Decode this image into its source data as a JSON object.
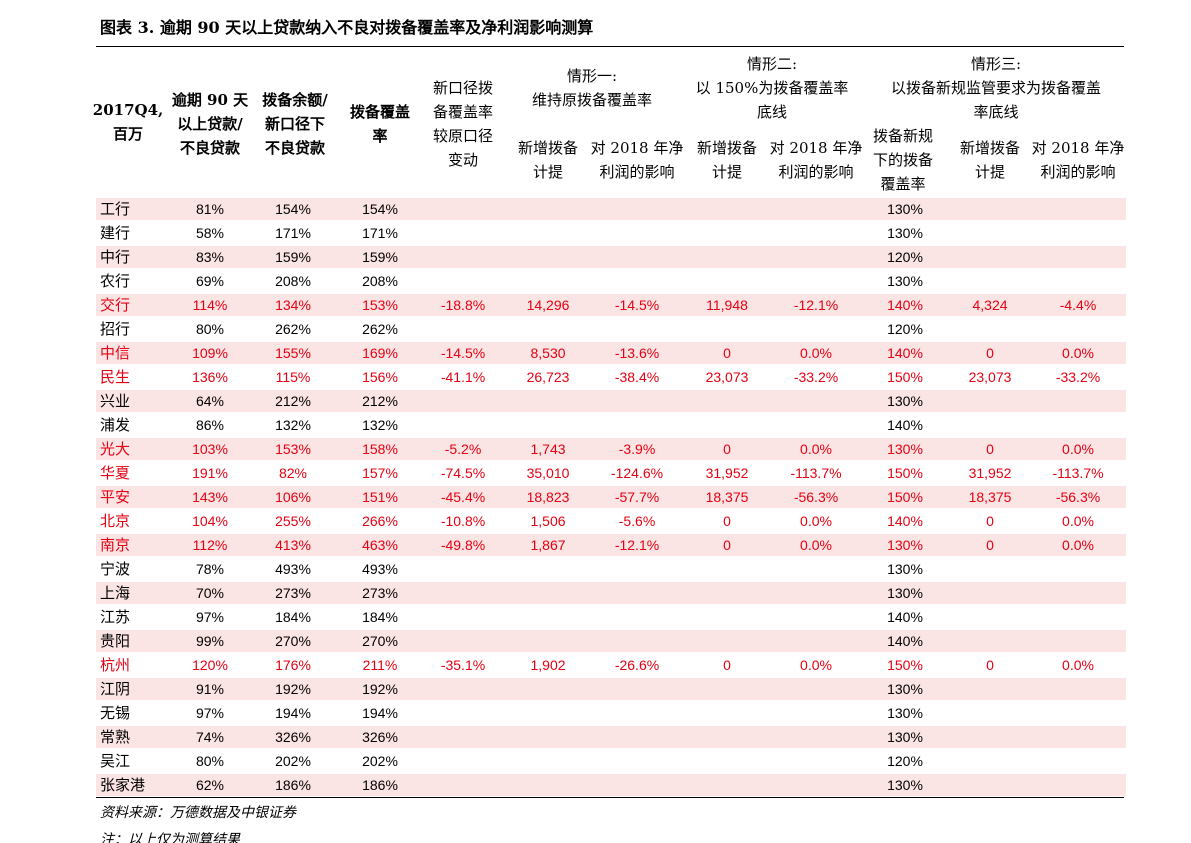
{
  "title": "图表 3. 逾期 90 天以上贷款纳入不良对拨备覆盖率及净利润影响测算",
  "header": [
    {
      "lines": [
        "2017Q4,",
        "百万"
      ]
    },
    {
      "lines": [
        "逾期 90 天",
        "以上贷款/",
        "不良贷款"
      ]
    },
    {
      "lines": [
        "拨备余额/",
        "新口径下",
        "不良贷款"
      ]
    },
    {
      "lines": [
        "拨备覆盖",
        "率"
      ]
    },
    {
      "lines": [
        "新口径拨",
        "备覆盖率",
        "较原口径",
        "变动"
      ]
    },
    {
      "lines": [
        "情形一:",
        "维持原拨备覆盖率"
      ]
    },
    {
      "lines": [
        "新增拨备",
        "计提"
      ]
    },
    {
      "lines": [
        "对 2018 年净",
        "利润的影响"
      ]
    },
    {
      "lines": [
        "情形二:",
        "以 150%为拨备覆盖率",
        "底线"
      ]
    },
    {
      "lines": [
        "新增拨备",
        "计提"
      ]
    },
    {
      "lines": [
        "对 2018 年净",
        "利润的影响"
      ]
    },
    {
      "lines": [
        "情形三:",
        "以拨备新规监管要求为拨备覆盖",
        "率底线"
      ]
    },
    {
      "lines": [
        "拨备新规",
        "下的拨备",
        "覆盖率"
      ]
    },
    {
      "lines": [
        "新增拨备",
        "计提"
      ]
    },
    {
      "lines": [
        "对 2018 年净",
        "利润的影响"
      ]
    }
  ],
  "table": {
    "rows": [
      [
        "工行",
        "81%",
        "154%",
        "154%",
        null,
        null,
        null,
        null,
        null,
        "130%",
        null,
        null
      ],
      [
        "建行",
        "58%",
        "171%",
        "171%",
        null,
        null,
        null,
        null,
        null,
        "130%",
        null,
        null
      ],
      [
        "中行",
        "83%",
        "159%",
        "159%",
        null,
        null,
        null,
        null,
        null,
        "120%",
        null,
        null
      ],
      [
        "农行",
        "69%",
        "208%",
        "208%",
        null,
        null,
        null,
        null,
        null,
        "130%",
        null,
        null
      ],
      [
        "交行",
        "114%",
        "134%",
        "153%",
        "-18.8%",
        "14,296",
        "-14.5%",
        "11,948",
        "-12.1%",
        "140%",
        "4,324",
        "-4.4%"
      ],
      [
        "招行",
        "80%",
        "262%",
        "262%",
        null,
        null,
        null,
        null,
        null,
        "120%",
        null,
        null
      ],
      [
        "中信",
        "109%",
        "155%",
        "169%",
        "-14.5%",
        "8,530",
        "-13.6%",
        "0",
        "0.0%",
        "140%",
        "0",
        "0.0%"
      ],
      [
        "民生",
        "136%",
        "115%",
        "156%",
        "-41.1%",
        "26,723",
        "-38.4%",
        "23,073",
        "-33.2%",
        "150%",
        "23,073",
        "-33.2%"
      ],
      [
        "兴业",
        "64%",
        "212%",
        "212%",
        null,
        null,
        null,
        null,
        null,
        "130%",
        null,
        null
      ],
      [
        "浦发",
        "86%",
        "132%",
        "132%",
        null,
        null,
        null,
        null,
        null,
        "140%",
        null,
        null
      ],
      [
        "光大",
        "103%",
        "153%",
        "158%",
        "-5.2%",
        "1,743",
        "-3.9%",
        "0",
        "0.0%",
        "130%",
        "0",
        "0.0%"
      ],
      [
        "华夏",
        "191%",
        "82%",
        "157%",
        "-74.5%",
        "35,010",
        "-124.6%",
        "31,952",
        "-113.7%",
        "150%",
        "31,952",
        "-113.7%"
      ],
      [
        "平安",
        "143%",
        "106%",
        "151%",
        "-45.4%",
        "18,823",
        "-57.7%",
        "18,375",
        "-56.3%",
        "150%",
        "18,375",
        "-56.3%"
      ],
      [
        "北京",
        "104%",
        "255%",
        "266%",
        "-10.8%",
        "1,506",
        "-5.6%",
        "0",
        "0.0%",
        "140%",
        "0",
        "0.0%"
      ],
      [
        "南京",
        "112%",
        "413%",
        "463%",
        "-49.8%",
        "1,867",
        "-12.1%",
        "0",
        "0.0%",
        "130%",
        "0",
        "0.0%"
      ],
      [
        "宁波",
        "78%",
        "493%",
        "493%",
        null,
        null,
        null,
        null,
        null,
        "130%",
        null,
        null
      ],
      [
        "上海",
        "70%",
        "273%",
        "273%",
        null,
        null,
        null,
        null,
        null,
        "130%",
        null,
        null
      ],
      [
        "江苏",
        "97%",
        "184%",
        "184%",
        null,
        null,
        null,
        null,
        null,
        "140%",
        null,
        null
      ],
      [
        "贵阳",
        "99%",
        "270%",
        "270%",
        null,
        null,
        null,
        null,
        null,
        "140%",
        null,
        null
      ],
      [
        "杭州",
        "120%",
        "176%",
        "211%",
        "-35.1%",
        "1,902",
        "-26.6%",
        "0",
        "0.0%",
        "150%",
        "0",
        "0.0%"
      ],
      [
        "江阴",
        "91%",
        "192%",
        "192%",
        null,
        null,
        null,
        null,
        null,
        "130%",
        null,
        null
      ],
      [
        "无锡",
        "97%",
        "194%",
        "194%",
        null,
        null,
        null,
        null,
        null,
        "130%",
        null,
        null
      ],
      [
        "常熟",
        "74%",
        "326%",
        "326%",
        null,
        null,
        null,
        null,
        null,
        "130%",
        null,
        null
      ],
      [
        "吴江",
        "80%",
        "202%",
        "202%",
        null,
        null,
        null,
        null,
        null,
        "120%",
        null,
        null
      ],
      [
        "张家港",
        "62%",
        "186%",
        "186%",
        null,
        null,
        null,
        null,
        null,
        "130%",
        null,
        null
      ]
    ]
  },
  "footer": {
    "source": "资料来源：万德数据及中银证券",
    "note": "注：以上仅为测算结果"
  }
}
